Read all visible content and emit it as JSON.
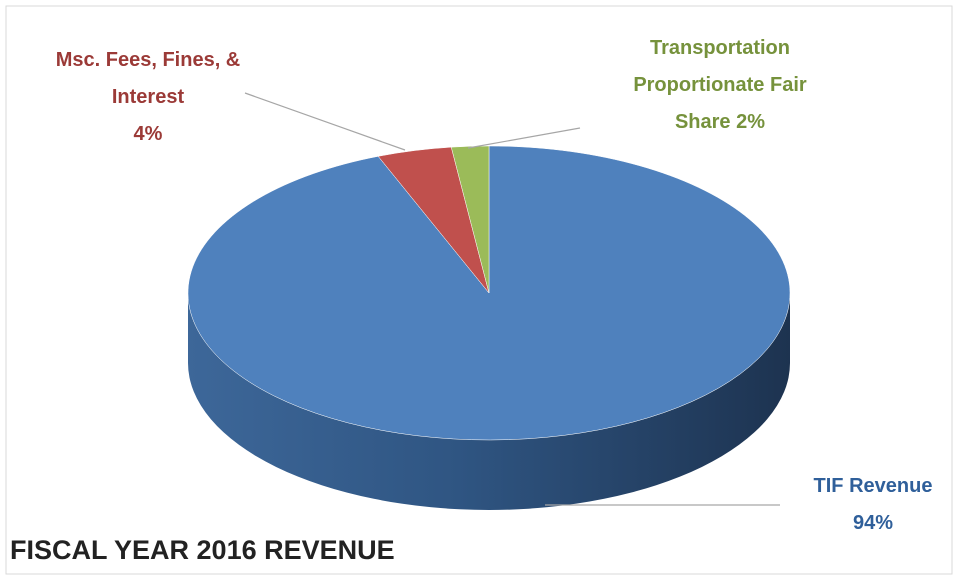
{
  "chart_data": {
    "type": "pie",
    "title": "FISCAL YEAR 2016 REVENUE",
    "categories": [
      "TIF Revenue",
      "Msc. Fees, Fines, & Interest",
      "Transportation Proportionate Fair Share"
    ],
    "values": [
      94,
      4,
      2
    ],
    "value_labels": [
      "94%",
      "4%",
      "2%"
    ],
    "colors": [
      "#4f81bd",
      "#c0504d",
      "#9bbb59"
    ],
    "label_colors": [
      "#2f5f9a",
      "#9b3a37",
      "#76923c"
    ]
  }
}
